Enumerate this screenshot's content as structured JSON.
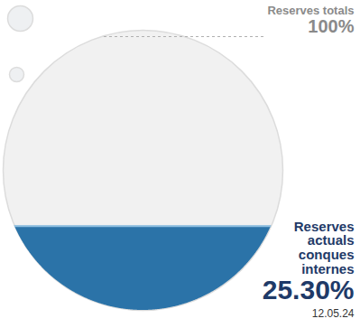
{
  "chart_data": {
    "type": "fill_level",
    "categories": [
      "Reserves totals",
      "Reserves actuals conques internes"
    ],
    "values": [
      100,
      25.3
    ],
    "value_labels": [
      "100%",
      "25.30%"
    ],
    "colors": [
      "#f1f1f1",
      "#2b73a8"
    ],
    "annotation": "12.05.24",
    "tick_labels": false
  }
}
